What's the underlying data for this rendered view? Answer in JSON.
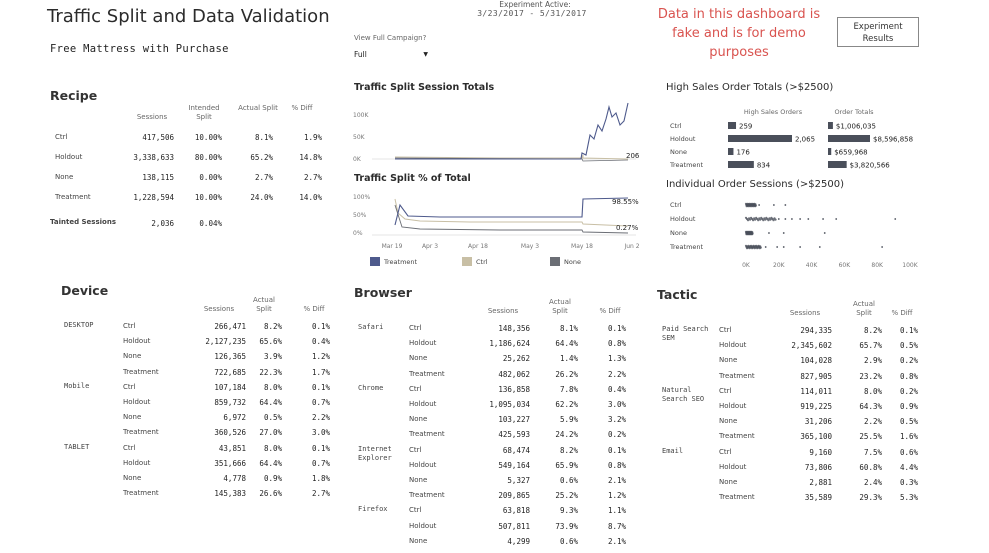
{
  "header": {
    "title": "Traffic Split and Data Validation",
    "subtitle": "Free Mattress with Purchase",
    "experiment_label": "Experiment Active:",
    "experiment_dates": "3/23/2017 - 5/31/2017",
    "campaign_filter_label": "View Full Campaign?",
    "campaign_filter_value": "Full",
    "fake_note": "Data in this dashboard is fake and is for demo purposes",
    "results_button": "Experiment Results"
  },
  "recipe": {
    "title": "Recipe",
    "columns": [
      "Sessions",
      "Intended Split",
      "Actual Split",
      "% Diff"
    ],
    "rows": [
      {
        "label": "Ctrl",
        "sessions": "417,506",
        "intended": "10.00%",
        "actual": "8.1%",
        "diff": "1.9%"
      },
      {
        "label": "Holdout",
        "sessions": "3,338,633",
        "intended": "80.00%",
        "actual": "65.2%",
        "diff": "14.8%"
      },
      {
        "label": "None",
        "sessions": "138,115",
        "intended": "0.00%",
        "actual": "2.7%",
        "diff": "2.7%"
      },
      {
        "label": "Treatment",
        "sessions": "1,228,594",
        "intended": "10.00%",
        "actual": "24.0%",
        "diff": "14.0%"
      }
    ],
    "tainted_label": "Tainted Sessions",
    "tainted_sessions": "2,036",
    "tainted_pct": "0.04%"
  },
  "traffic_totals": {
    "title": "Traffic Split Session Totals",
    "y_ticks": [
      "100K",
      "50K",
      "0K"
    ],
    "end_label": "206"
  },
  "traffic_pct": {
    "title": "Traffic Split % of Total",
    "y_ticks": [
      "100%",
      "50%",
      "0%"
    ],
    "end_label_top": "98.55%",
    "end_label_bottom": "0.27%",
    "x_ticks": [
      "Mar 19",
      "Apr 3",
      "Apr 18",
      "May 3",
      "May 18",
      "Jun 2"
    ]
  },
  "legend": [
    {
      "label": "Treatment",
      "color": "#4e5a8c"
    },
    {
      "label": "Ctrl",
      "color": "#c8bfa5"
    },
    {
      "label": "None",
      "color": "#6b6e75"
    }
  ],
  "high_sales": {
    "title": "High Sales Order Totals (>$2500)",
    "col1": "High Sales Orders",
    "col2": "Order Totals",
    "rows": [
      {
        "label": "Ctrl",
        "orders": 259,
        "orders_label": "259",
        "total": 1006035,
        "total_label": "$1,006,035"
      },
      {
        "label": "Holdout",
        "orders": 2065,
        "orders_label": "2,065",
        "total": 8596858,
        "total_label": "$8,596,858"
      },
      {
        "label": "None",
        "orders": 176,
        "orders_label": "176",
        "total": 659968,
        "total_label": "$659,968"
      },
      {
        "label": "Treatment",
        "orders": 834,
        "orders_label": "834",
        "total": 3820566,
        "total_label": "$3,820,566"
      }
    ]
  },
  "individual_orders": {
    "title": "Individual Order Sessions (>$2500)",
    "rows": [
      "Ctrl",
      "Holdout",
      "None",
      "Treatment"
    ],
    "x_ticks": [
      "0K",
      "20K",
      "40K",
      "60K",
      "80K",
      "100K"
    ]
  },
  "device": {
    "title": "Device",
    "columns": [
      "Sessions",
      "Actual Split",
      "% Diff"
    ],
    "groups": [
      {
        "name": "DESKTOP",
        "rows": [
          {
            "label": "Ctrl",
            "sessions": "266,471",
            "split": "8.2%",
            "diff": "0.1%"
          },
          {
            "label": "Holdout",
            "sessions": "2,127,235",
            "split": "65.6%",
            "diff": "0.4%"
          },
          {
            "label": "None",
            "sessions": "126,365",
            "split": "3.9%",
            "diff": "1.2%"
          },
          {
            "label": "Treatment",
            "sessions": "722,685",
            "split": "22.3%",
            "diff": "1.7%"
          }
        ]
      },
      {
        "name": "Mobile",
        "rows": [
          {
            "label": "Ctrl",
            "sessions": "107,184",
            "split": "8.0%",
            "diff": "0.1%"
          },
          {
            "label": "Holdout",
            "sessions": "859,732",
            "split": "64.4%",
            "diff": "0.7%"
          },
          {
            "label": "None",
            "sessions": "6,972",
            "split": "0.5%",
            "diff": "2.2%"
          },
          {
            "label": "Treatment",
            "sessions": "360,526",
            "split": "27.0%",
            "diff": "3.0%"
          }
        ]
      },
      {
        "name": "TABLET",
        "rows": [
          {
            "label": "Ctrl",
            "sessions": "43,851",
            "split": "8.0%",
            "diff": "0.1%"
          },
          {
            "label": "Holdout",
            "sessions": "351,666",
            "split": "64.4%",
            "diff": "0.7%"
          },
          {
            "label": "None",
            "sessions": "4,778",
            "split": "0.9%",
            "diff": "1.8%"
          },
          {
            "label": "Treatment",
            "sessions": "145,383",
            "split": "26.6%",
            "diff": "2.7%"
          }
        ]
      }
    ]
  },
  "browser": {
    "title": "Browser",
    "columns": [
      "Sessions",
      "Actual Split",
      "% Diff"
    ],
    "groups": [
      {
        "name": "Safari",
        "rows": [
          {
            "label": "Ctrl",
            "sessions": "148,356",
            "split": "8.1%",
            "diff": "0.1%"
          },
          {
            "label": "Holdout",
            "sessions": "1,186,624",
            "split": "64.4%",
            "diff": "0.8%"
          },
          {
            "label": "None",
            "sessions": "25,262",
            "split": "1.4%",
            "diff": "1.3%"
          },
          {
            "label": "Treatment",
            "sessions": "482,062",
            "split": "26.2%",
            "diff": "2.2%"
          }
        ]
      },
      {
        "name": "Chrome",
        "rows": [
          {
            "label": "Ctrl",
            "sessions": "136,858",
            "split": "7.8%",
            "diff": "0.4%"
          },
          {
            "label": "Holdout",
            "sessions": "1,095,034",
            "split": "62.2%",
            "diff": "3.0%"
          },
          {
            "label": "None",
            "sessions": "103,227",
            "split": "5.9%",
            "diff": "3.2%"
          },
          {
            "label": "Treatment",
            "sessions": "425,593",
            "split": "24.2%",
            "diff": "0.2%"
          }
        ]
      },
      {
        "name": "Internet Explorer",
        "rows": [
          {
            "label": "Ctrl",
            "sessions": "68,474",
            "split": "8.2%",
            "diff": "0.1%"
          },
          {
            "label": "Holdout",
            "sessions": "549,164",
            "split": "65.9%",
            "diff": "0.8%"
          },
          {
            "label": "None",
            "sessions": "5,327",
            "split": "0.6%",
            "diff": "2.1%"
          },
          {
            "label": "Treatment",
            "sessions": "209,865",
            "split": "25.2%",
            "diff": "1.2%"
          }
        ]
      },
      {
        "name": "Firefox",
        "rows": [
          {
            "label": "Ctrl",
            "sessions": "63,818",
            "split": "9.3%",
            "diff": "1.1%"
          },
          {
            "label": "Holdout",
            "sessions": "507,811",
            "split": "73.9%",
            "diff": "8.7%"
          },
          {
            "label": "None",
            "sessions": "4,299",
            "split": "0.6%",
            "diff": "2.1%"
          }
        ]
      }
    ]
  },
  "tactic": {
    "title": "Tactic",
    "columns": [
      "Sessions",
      "Actual Split",
      "% Diff"
    ],
    "groups": [
      {
        "name": "Paid Search SEM",
        "rows": [
          {
            "label": "Ctrl",
            "sessions": "294,335",
            "split": "8.2%",
            "diff": "0.1%"
          },
          {
            "label": "Holdout",
            "sessions": "2,345,602",
            "split": "65.7%",
            "diff": "0.5%"
          },
          {
            "label": "None",
            "sessions": "104,028",
            "split": "2.9%",
            "diff": "0.2%"
          },
          {
            "label": "Treatment",
            "sessions": "827,905",
            "split": "23.2%",
            "diff": "0.8%"
          }
        ]
      },
      {
        "name": "Natural Search SEO",
        "rows": [
          {
            "label": "Ctrl",
            "sessions": "114,011",
            "split": "8.0%",
            "diff": "0.2%"
          },
          {
            "label": "Holdout",
            "sessions": "919,225",
            "split": "64.3%",
            "diff": "0.9%"
          },
          {
            "label": "None",
            "sessions": "31,206",
            "split": "2.2%",
            "diff": "0.5%"
          },
          {
            "label": "Treatment",
            "sessions": "365,100",
            "split": "25.5%",
            "diff": "1.6%"
          }
        ]
      },
      {
        "name": "Email",
        "rows": [
          {
            "label": "Ctrl",
            "sessions": "9,160",
            "split": "7.5%",
            "diff": "0.6%"
          },
          {
            "label": "Holdout",
            "sessions": "73,806",
            "split": "60.8%",
            "diff": "4.4%"
          },
          {
            "label": "None",
            "sessions": "2,881",
            "split": "2.4%",
            "diff": "0.3%"
          },
          {
            "label": "Treatment",
            "sessions": "35,589",
            "split": "29.3%",
            "diff": "5.3%"
          }
        ]
      }
    ]
  }
}
